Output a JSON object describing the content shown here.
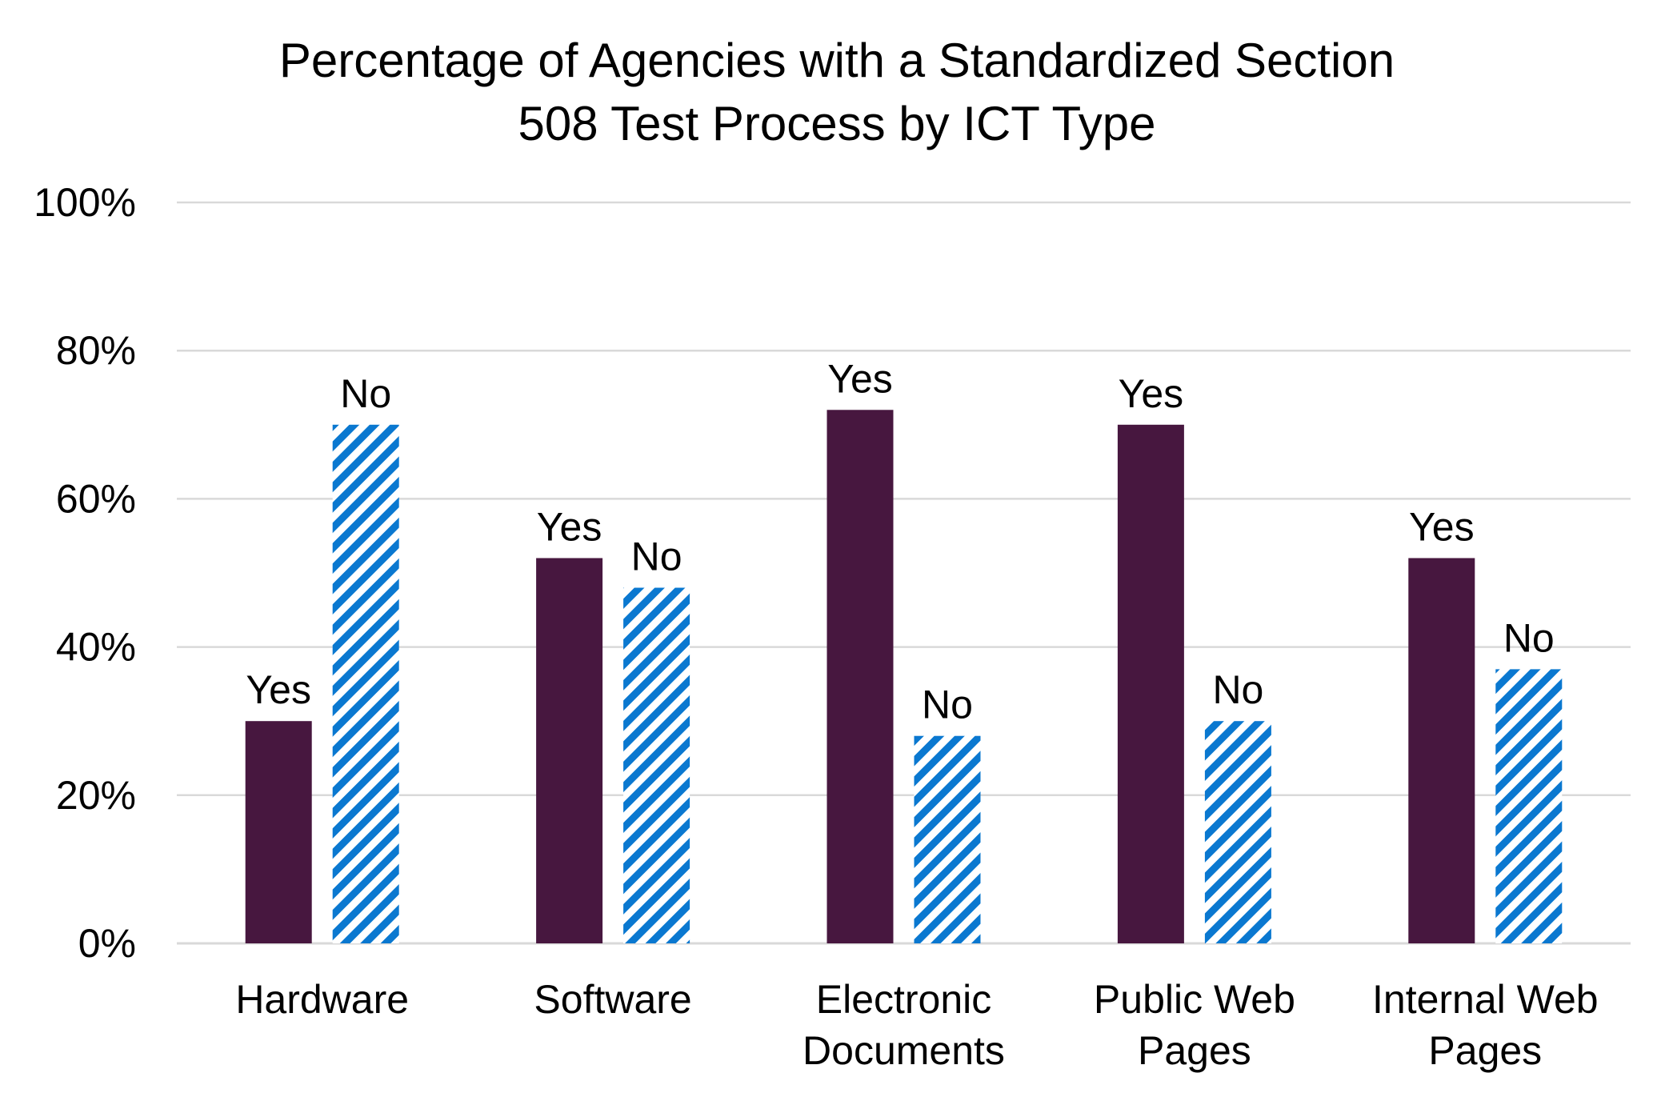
{
  "chart_data": {
    "type": "bar",
    "title": [
      "Percentage of Agencies with a Standardized Section",
      "508 Test Process by ICT Type"
    ],
    "categories": [
      [
        "Hardware"
      ],
      [
        "Software"
      ],
      [
        "Electronic",
        "Documents"
      ],
      [
        "Public Web",
        "Pages"
      ],
      [
        "Internal Web",
        "Pages"
      ]
    ],
    "series": [
      {
        "name": "Yes",
        "values": [
          30,
          52,
          72,
          70,
          52
        ],
        "color": "#47173f",
        "pattern": "solid"
      },
      {
        "name": "No",
        "values": [
          70,
          48,
          28,
          30,
          37
        ],
        "color": "#0a78d0",
        "pattern": "diagonal-stripes"
      }
    ],
    "data_labels": "series name above each bar",
    "ylim": [
      0,
      100
    ],
    "yticks": [
      "0%",
      "20%",
      "40%",
      "60%",
      "80%",
      "100%"
    ],
    "grid": true,
    "legend": "none",
    "xlabel": "",
    "ylabel": ""
  }
}
